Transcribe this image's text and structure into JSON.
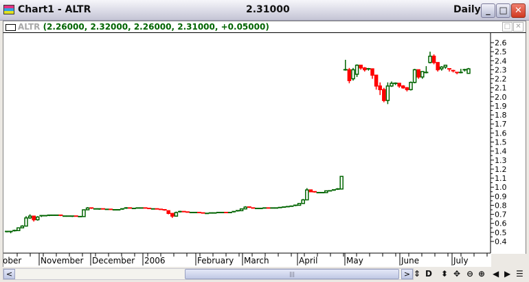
{
  "window": {
    "title": "Chart1 - ALTR",
    "price": "2.31000",
    "period": "Daily",
    "minimize": "_",
    "maximize": "□",
    "close": "✕"
  },
  "legend": {
    "symbol": "ALTR",
    "values": "(2.26000, 2.32000, 2.26000, 2.31000, +0.05000)"
  },
  "colors": {
    "up": "#006400",
    "down": "#ff0000",
    "legend_text": "#006400"
  },
  "toolbar": {
    "icons": [
      "refresh-icon",
      "d-icon",
      "vertical-resize-icon",
      "move-icon",
      "zoom-out-icon",
      "zoom-in-icon",
      "scroll-left-icon",
      "scroll-right-icon",
      "properties-icon"
    ],
    "labels": [
      "⇕",
      "D",
      "⬍",
      "✥",
      "⊖",
      "⊕",
      "◀",
      "▶",
      "☰"
    ]
  },
  "chart_data": {
    "type": "candlestick",
    "ylim": [
      0.4,
      2.6
    ],
    "yticks": [
      "2.6",
      "2.5",
      "2.4",
      "2.3",
      "2.2",
      "2.1",
      "2.0",
      "1.9",
      "1.8",
      "1.7",
      "1.6",
      "1.5",
      "1.4",
      "1.3",
      "1.2",
      "1.1",
      "1.0",
      "0.9",
      "0.8",
      "0.7",
      "0.6",
      "0.5",
      "0.4"
    ],
    "xticks": [
      "ober",
      "November",
      "December",
      "2006",
      "February",
      "March",
      "April",
      "May",
      "June",
      "July"
    ],
    "ohlc": [
      [
        0.5,
        0.51,
        0.5,
        0.51
      ],
      [
        0.51,
        0.51,
        0.49,
        0.51
      ],
      [
        0.51,
        0.53,
        0.51,
        0.52
      ],
      [
        0.52,
        0.55,
        0.52,
        0.55
      ],
      [
        0.55,
        0.58,
        0.55,
        0.57
      ],
      [
        0.57,
        0.68,
        0.57,
        0.66
      ],
      [
        0.66,
        0.7,
        0.65,
        0.68
      ],
      [
        0.68,
        0.68,
        0.62,
        0.64
      ],
      [
        0.64,
        0.68,
        0.63,
        0.67
      ],
      [
        0.67,
        0.69,
        0.67,
        0.685
      ],
      [
        0.685,
        0.69,
        0.68,
        0.685
      ],
      [
        0.685,
        0.69,
        0.68,
        0.69
      ],
      [
        0.69,
        0.69,
        0.69,
        0.69
      ],
      [
        0.69,
        0.69,
        0.69,
        0.69
      ],
      [
        0.69,
        0.69,
        0.68,
        0.68
      ],
      [
        0.68,
        0.68,
        0.68,
        0.68
      ],
      [
        0.68,
        0.68,
        0.68,
        0.68
      ],
      [
        0.68,
        0.68,
        0.67,
        0.68
      ],
      [
        0.68,
        0.68,
        0.675,
        0.675
      ],
      [
        0.675,
        0.675,
        0.675,
        0.675
      ],
      [
        0.675,
        0.75,
        0.675,
        0.75
      ],
      [
        0.75,
        0.78,
        0.75,
        0.77
      ],
      [
        0.77,
        0.77,
        0.76,
        0.76
      ],
      [
        0.76,
        0.76,
        0.76,
        0.76
      ],
      [
        0.76,
        0.76,
        0.75,
        0.76
      ],
      [
        0.76,
        0.76,
        0.755,
        0.755
      ],
      [
        0.755,
        0.755,
        0.755,
        0.755
      ],
      [
        0.755,
        0.755,
        0.75,
        0.75
      ],
      [
        0.75,
        0.75,
        0.75,
        0.75
      ],
      [
        0.75,
        0.75,
        0.75,
        0.75
      ],
      [
        0.75,
        0.76,
        0.75,
        0.76
      ],
      [
        0.76,
        0.78,
        0.76,
        0.77
      ],
      [
        0.77,
        0.77,
        0.765,
        0.765
      ],
      [
        0.765,
        0.765,
        0.765,
        0.765
      ],
      [
        0.765,
        0.77,
        0.765,
        0.77
      ],
      [
        0.77,
        0.77,
        0.77,
        0.77
      ],
      [
        0.77,
        0.77,
        0.765,
        0.765
      ],
      [
        0.765,
        0.765,
        0.76,
        0.76
      ],
      [
        0.76,
        0.76,
        0.76,
        0.76
      ],
      [
        0.76,
        0.76,
        0.755,
        0.755
      ],
      [
        0.755,
        0.755,
        0.75,
        0.75
      ],
      [
        0.75,
        0.75,
        0.74,
        0.74
      ],
      [
        0.74,
        0.74,
        0.7,
        0.71
      ],
      [
        0.71,
        0.71,
        0.66,
        0.68
      ],
      [
        0.68,
        0.73,
        0.68,
        0.72
      ],
      [
        0.72,
        0.74,
        0.72,
        0.73
      ],
      [
        0.73,
        0.73,
        0.725,
        0.725
      ],
      [
        0.725,
        0.725,
        0.72,
        0.72
      ],
      [
        0.72,
        0.72,
        0.72,
        0.72
      ],
      [
        0.72,
        0.72,
        0.72,
        0.72
      ],
      [
        0.72,
        0.72,
        0.715,
        0.715
      ],
      [
        0.715,
        0.715,
        0.71,
        0.71
      ],
      [
        0.71,
        0.71,
        0.71,
        0.71
      ],
      [
        0.71,
        0.715,
        0.71,
        0.715
      ],
      [
        0.715,
        0.715,
        0.715,
        0.715
      ],
      [
        0.715,
        0.72,
        0.715,
        0.72
      ],
      [
        0.72,
        0.72,
        0.72,
        0.72
      ],
      [
        0.72,
        0.72,
        0.715,
        0.715
      ],
      [
        0.715,
        0.72,
        0.715,
        0.72
      ],
      [
        0.72,
        0.73,
        0.72,
        0.73
      ],
      [
        0.73,
        0.74,
        0.73,
        0.74
      ],
      [
        0.74,
        0.76,
        0.74,
        0.76
      ],
      [
        0.76,
        0.79,
        0.76,
        0.78
      ],
      [
        0.78,
        0.78,
        0.77,
        0.77
      ],
      [
        0.77,
        0.77,
        0.765,
        0.765
      ],
      [
        0.765,
        0.765,
        0.765,
        0.765
      ],
      [
        0.765,
        0.765,
        0.765,
        0.765
      ],
      [
        0.765,
        0.77,
        0.765,
        0.77
      ],
      [
        0.77,
        0.77,
        0.765,
        0.765
      ],
      [
        0.765,
        0.77,
        0.765,
        0.77
      ],
      [
        0.77,
        0.77,
        0.77,
        0.77
      ],
      [
        0.77,
        0.775,
        0.77,
        0.775
      ],
      [
        0.775,
        0.78,
        0.775,
        0.78
      ],
      [
        0.78,
        0.785,
        0.78,
        0.785
      ],
      [
        0.785,
        0.79,
        0.785,
        0.79
      ],
      [
        0.79,
        0.8,
        0.79,
        0.8
      ],
      [
        0.8,
        0.82,
        0.8,
        0.82
      ],
      [
        0.82,
        0.87,
        0.82,
        0.86
      ],
      [
        0.86,
        0.99,
        0.86,
        0.97
      ],
      [
        0.97,
        0.97,
        0.95,
        0.95
      ],
      [
        0.95,
        0.95,
        0.94,
        0.94
      ],
      [
        0.94,
        0.94,
        0.94,
        0.94
      ],
      [
        0.94,
        0.94,
        0.94,
        0.94
      ],
      [
        0.94,
        0.96,
        0.94,
        0.96
      ],
      [
        0.96,
        0.96,
        0.96,
        0.96
      ],
      [
        0.96,
        0.97,
        0.96,
        0.97
      ],
      [
        0.97,
        0.99,
        0.97,
        0.98
      ],
      [
        0.98,
        1.12,
        0.98,
        1.12
      ],
      [
        2.3,
        2.41,
        2.29,
        2.3
      ],
      [
        2.3,
        2.32,
        2.15,
        2.18
      ],
      [
        2.2,
        2.32,
        2.18,
        2.3
      ],
      [
        2.25,
        2.36,
        2.22,
        2.35
      ],
      [
        2.35,
        2.35,
        2.3,
        2.32
      ],
      [
        2.32,
        2.33,
        2.28,
        2.3
      ],
      [
        2.3,
        2.32,
        2.29,
        2.31
      ],
      [
        2.31,
        2.31,
        2.2,
        2.24
      ],
      [
        2.24,
        2.24,
        2.08,
        2.12
      ],
      [
        2.12,
        2.16,
        2.02,
        2.08
      ],
      [
        2.08,
        2.1,
        1.94,
        1.96
      ],
      [
        1.96,
        2.16,
        1.92,
        2.12
      ],
      [
        2.12,
        2.17,
        2.11,
        2.15
      ],
      [
        2.15,
        2.16,
        2.13,
        2.15
      ],
      [
        2.15,
        2.15,
        2.1,
        2.12
      ],
      [
        2.12,
        2.13,
        2.09,
        2.1
      ],
      [
        2.1,
        2.11,
        2.06,
        2.08
      ],
      [
        2.08,
        2.17,
        2.07,
        2.16
      ],
      [
        2.16,
        2.31,
        2.15,
        2.3
      ],
      [
        2.3,
        2.3,
        2.2,
        2.22
      ],
      [
        2.22,
        2.28,
        2.2,
        2.28
      ],
      [
        2.27,
        2.34,
        2.26,
        2.27
      ],
      [
        2.38,
        2.5,
        2.37,
        2.45
      ],
      [
        2.45,
        2.47,
        2.36,
        2.38
      ],
      [
        2.38,
        2.38,
        2.28,
        2.3
      ],
      [
        2.31,
        2.34,
        2.29,
        2.33
      ],
      [
        2.33,
        2.35,
        2.31,
        2.35
      ],
      [
        2.31,
        2.31,
        2.28,
        2.3
      ],
      [
        2.29,
        2.3,
        2.27,
        2.28
      ],
      [
        2.27,
        2.27,
        2.25,
        2.26
      ],
      [
        2.26,
        2.31,
        2.26,
        2.27
      ],
      [
        2.3,
        2.31,
        2.28,
        2.3
      ],
      [
        2.26,
        2.32,
        2.26,
        2.31
      ]
    ]
  }
}
